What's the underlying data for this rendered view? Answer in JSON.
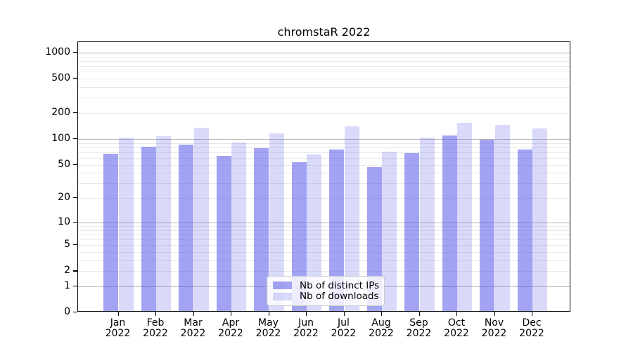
{
  "chart_data": {
    "type": "bar",
    "title": "chromstaR 2022",
    "categories": [
      "Jan",
      "Feb",
      "Mar",
      "Apr",
      "May",
      "Jun",
      "Jul",
      "Aug",
      "Sep",
      "Oct",
      "Nov",
      "Dec"
    ],
    "category_year": "2022",
    "series": [
      {
        "name": "Nb of distinct IPs",
        "values": [
          64,
          78,
          83,
          61,
          75,
          51,
          72,
          45,
          65,
          105,
          94,
          72
        ]
      },
      {
        "name": "Nb of downloads",
        "values": [
          100,
          103,
          130,
          87,
          112,
          63,
          135,
          68,
          100,
          148,
          140,
          128
        ]
      }
    ],
    "y_ticks": [
      0,
      1,
      2,
      5,
      10,
      20,
      50,
      100,
      200,
      500,
      1000
    ],
    "y_scale": "log10(1+y)",
    "ylim": [
      0,
      1325
    ],
    "xlabel": "",
    "ylabel": "",
    "grid": "horizontal major and minor gridlines",
    "legend": {
      "position": "inside lower-center",
      "items": [
        "Nb of distinct IPs",
        "Nb of downloads"
      ]
    },
    "style": {
      "bar_base_color_rgb": "102,102,235",
      "series_alpha": [
        0.6,
        0.25
      ],
      "major_grid_color": "#b5b5b5",
      "minor_grid_color": "#e9e9e9",
      "axis_color": "#000000",
      "background": "#ffffff"
    }
  }
}
